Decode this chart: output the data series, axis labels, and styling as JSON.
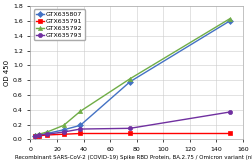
{
  "title": "",
  "xlabel": "Recombinant SARS-CoV-2 (COVID-19) Spike RBD Protein, BA.2.75 / Omicron variant (nM)",
  "ylabel": "OD 450",
  "xlim": [
    0,
    160
  ],
  "ylim": [
    0,
    1.8
  ],
  "yticks": [
    0,
    0.2,
    0.4,
    0.6,
    0.8,
    1.0,
    1.2,
    1.4,
    1.6,
    1.8
  ],
  "xticks": [
    0,
    20,
    40,
    60,
    80,
    100,
    120,
    140,
    160
  ],
  "series": [
    {
      "label": "GTX635807",
      "color": "#4472C4",
      "marker": "D",
      "x": [
        3.125,
        6.25,
        12.5,
        25,
        37.5,
        75,
        150
      ],
      "y": [
        0.05,
        0.06,
        0.08,
        0.13,
        0.19,
        0.78,
        1.6
      ]
    },
    {
      "label": "GTX635791",
      "color": "#FF0000",
      "marker": "s",
      "x": [
        3.125,
        6.25,
        12.5,
        25,
        37.5,
        75,
        150
      ],
      "y": [
        0.05,
        0.05,
        0.06,
        0.07,
        0.08,
        0.08,
        0.08
      ]
    },
    {
      "label": "GTX635792",
      "color": "#70AD47",
      "marker": "^",
      "x": [
        3.125,
        6.25,
        12.5,
        25,
        37.5,
        75,
        150
      ],
      "y": [
        0.06,
        0.07,
        0.1,
        0.19,
        0.38,
        0.82,
        1.63
      ]
    },
    {
      "label": "GTX635793",
      "color": "#7030A0",
      "marker": "o",
      "x": [
        3.125,
        6.25,
        12.5,
        25,
        37.5,
        75,
        150
      ],
      "y": [
        0.05,
        0.06,
        0.07,
        0.1,
        0.14,
        0.15,
        0.37
      ]
    }
  ],
  "background_color": "#FFFFFF",
  "grid_color": "#CCCCCC",
  "legend_fontsize": 4.5,
  "axis_fontsize": 4.5,
  "tick_fontsize": 4.5,
  "xlabel_fontsize": 4.0,
  "ylabel_fontsize": 5.0,
  "linewidth": 1.0,
  "markersize": 3.0
}
